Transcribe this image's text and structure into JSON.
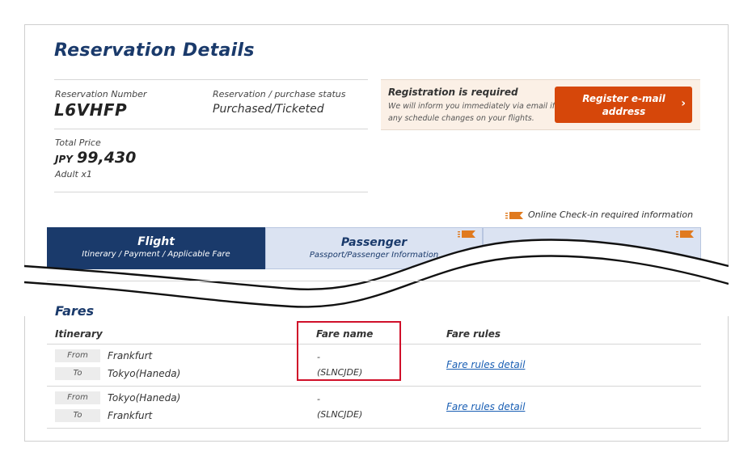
{
  "page_title": "Reservation Details",
  "reservation": {
    "number_label": "Reservation Number",
    "number": "L6VHFP",
    "status_label": "Reservation / purchase status",
    "status": "Purchased/Ticketed",
    "total_label": "Total Price",
    "currency": "JPY",
    "amount": "99,430",
    "passengers": "Adult x1"
  },
  "registration": {
    "title": "Registration is required",
    "description": "We will inform you immediately via email if any schedule changes on your flights.",
    "button_label": "Register e-mail address",
    "button_arrow": "›",
    "button_color": "#d6470a"
  },
  "checkin_note": "Online Check-in required information",
  "tabs": [
    {
      "title": "Flight",
      "subtitle": "Itinerary / Payment / Applicable Fare",
      "active": true
    },
    {
      "title": "Passenger",
      "subtitle": "Passport/Passenger Information",
      "active": false
    }
  ],
  "fares": {
    "section_title": "Fares",
    "headers": {
      "itinerary": "Itinerary",
      "fare_name": "Fare name",
      "fare_rules": "Fare rules"
    },
    "rows": [
      {
        "from_label": "From",
        "from": "Frankfurt",
        "to_label": "To",
        "to": "Tokyo(Haneda)",
        "fare_name": "-",
        "fare_code": "(SLNCJDE)",
        "rules_link": "Fare rules detail"
      },
      {
        "from_label": "From",
        "from": "Tokyo(Haneda)",
        "to_label": "To",
        "to": "Frankfurt",
        "fare_name": "-",
        "fare_code": "(SLNCJDE)",
        "rules_link": "Fare rules detail"
      }
    ]
  },
  "colors": {
    "brand_navy": "#1a3a6b",
    "accent_orange": "#d6470a",
    "highlight_red": "#d0102a"
  }
}
